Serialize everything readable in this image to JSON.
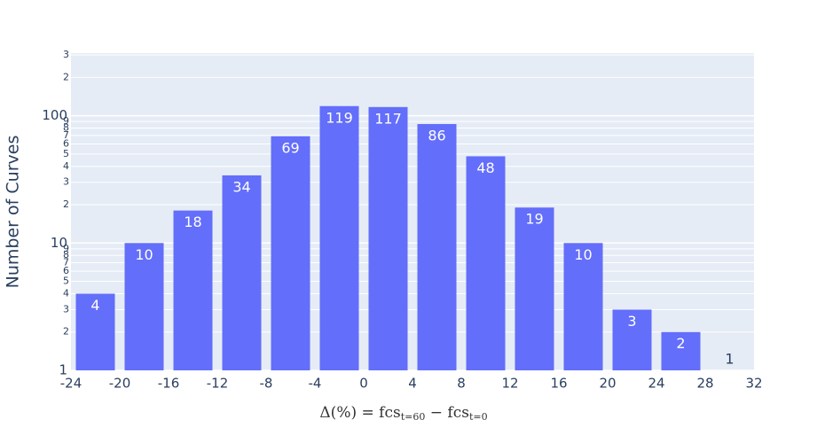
{
  "chart_data": {
    "type": "histogram",
    "bins": [
      -24,
      -20,
      -16,
      -12,
      -8,
      -4,
      0,
      4,
      8,
      12,
      16,
      20,
      24,
      28,
      32
    ],
    "values": [
      4,
      10,
      18,
      34,
      69,
      119,
      117,
      86,
      48,
      19,
      10,
      3,
      2,
      1
    ],
    "color": "#636efa",
    "log_y": true,
    "grid": true,
    "xlim": [
      -24,
      32
    ],
    "xticks": [
      -24,
      -20,
      -16,
      -12,
      -8,
      -4,
      0,
      4,
      8,
      12,
      16,
      20,
      24,
      28,
      32
    ],
    "ylim": [
      1,
      310
    ],
    "yticks": [
      1,
      2,
      3,
      4,
      5,
      6,
      7,
      8,
      9,
      10,
      {
        "value": 20,
        "label": "2"
      },
      {
        "value": 30,
        "label": "3"
      },
      {
        "value": 40,
        "label": "4"
      },
      {
        "value": 50,
        "label": "5"
      },
      {
        "value": 60,
        "label": "6"
      },
      {
        "value": 70,
        "label": "7"
      },
      {
        "value": 80,
        "label": "8"
      },
      {
        "value": 90,
        "label": "9"
      },
      100,
      {
        "value": 200,
        "label": "2"
      },
      {
        "value": 300,
        "label": "3"
      }
    ],
    "ylabel": "Number of Curves",
    "xlabel": [
      "Δ(%) = fcs",
      "t=60",
      " − fcs",
      "t=0"
    ]
  }
}
